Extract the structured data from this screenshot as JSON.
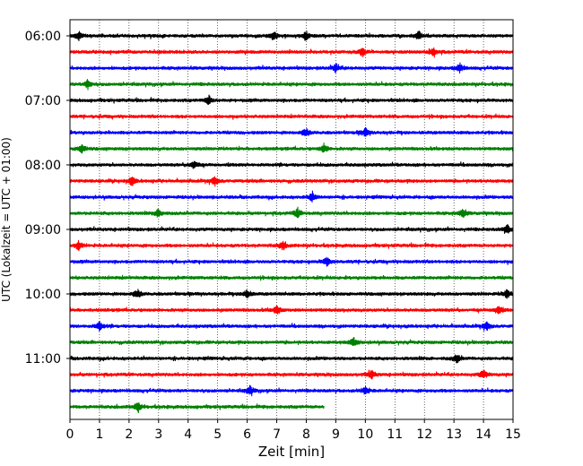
{
  "chart_data": {
    "type": "line",
    "title": "",
    "xlabel": "Zeit  [min]",
    "ylabel": "UTC (Lokalzeit = UTC + 01:00)",
    "xlim": [
      0,
      15
    ],
    "x_ticks": [
      0,
      1,
      2,
      3,
      4,
      5,
      6,
      7,
      8,
      9,
      10,
      11,
      12,
      13,
      14,
      15
    ],
    "x_tick_labels": [
      "0",
      "1",
      "2",
      "3",
      "4",
      "5",
      "6",
      "7",
      "8",
      "9",
      "10",
      "11",
      "12",
      "13",
      "14",
      "15"
    ],
    "y_tick_labels": [
      "06:00",
      "07:00",
      "08:00",
      "09:00",
      "10:00",
      "11:00"
    ],
    "grid": "vertical dotted lines at each minute",
    "color_cycle": [
      "#000000",
      "#ff0000",
      "#0000ff",
      "#008000"
    ],
    "series": [
      {
        "start": "06:00",
        "end_min": 15,
        "color": "#000000",
        "events_min": [
          0.3,
          6.9,
          8.0,
          11.8
        ]
      },
      {
        "start": "06:15",
        "end_min": 15,
        "color": "#ff0000",
        "events_min": [
          9.9,
          12.3
        ]
      },
      {
        "start": "06:30",
        "end_min": 15,
        "color": "#0000ff",
        "events_min": [
          9.0,
          13.2
        ]
      },
      {
        "start": "06:45",
        "end_min": 15,
        "color": "#008000",
        "events_min": [
          0.6
        ]
      },
      {
        "start": "07:00",
        "end_min": 15,
        "color": "#000000",
        "events_min": [
          4.7
        ]
      },
      {
        "start": "07:15",
        "end_min": 15,
        "color": "#ff0000",
        "events_min": []
      },
      {
        "start": "07:30",
        "end_min": 15,
        "color": "#0000ff",
        "events_min": [
          8.0,
          10.0
        ]
      },
      {
        "start": "07:45",
        "end_min": 15,
        "color": "#008000",
        "events_min": [
          0.4,
          8.6
        ]
      },
      {
        "start": "08:00",
        "end_min": 15,
        "color": "#000000",
        "events_min": [
          4.2
        ]
      },
      {
        "start": "08:15",
        "end_min": 15,
        "color": "#ff0000",
        "events_min": [
          2.1,
          4.9
        ]
      },
      {
        "start": "08:30",
        "end_min": 15,
        "color": "#0000ff",
        "events_min": [
          8.2
        ]
      },
      {
        "start": "08:45",
        "end_min": 15,
        "color": "#008000",
        "events_min": [
          3.0,
          7.7,
          13.3
        ]
      },
      {
        "start": "09:00",
        "end_min": 15,
        "color": "#000000",
        "events_min": [
          14.8
        ]
      },
      {
        "start": "09:15",
        "end_min": 15,
        "color": "#ff0000",
        "events_min": [
          0.3,
          7.2
        ]
      },
      {
        "start": "09:30",
        "end_min": 15,
        "color": "#0000ff",
        "events_min": [
          8.7
        ]
      },
      {
        "start": "09:45",
        "end_min": 15,
        "color": "#008000",
        "events_min": []
      },
      {
        "start": "10:00",
        "end_min": 15,
        "color": "#000000",
        "events_min": [
          2.3,
          6.0,
          14.8
        ]
      },
      {
        "start": "10:15",
        "end_min": 15,
        "color": "#ff0000",
        "events_min": [
          7.0,
          14.5
        ]
      },
      {
        "start": "10:30",
        "end_min": 15,
        "color": "#0000ff",
        "events_min": [
          1.0,
          14.1
        ]
      },
      {
        "start": "10:45",
        "end_min": 15,
        "color": "#008000",
        "events_min": [
          9.6
        ]
      },
      {
        "start": "11:00",
        "end_min": 15,
        "color": "#000000",
        "events_min": [
          13.1
        ]
      },
      {
        "start": "11:15",
        "end_min": 15,
        "color": "#ff0000",
        "events_min": [
          10.2,
          14.0
        ]
      },
      {
        "start": "11:30",
        "end_min": 15,
        "color": "#0000ff",
        "events_min": [
          6.1,
          10.0
        ]
      },
      {
        "start": "11:45",
        "end_min": 8.6,
        "color": "#008000",
        "events_min": [
          2.3
        ]
      }
    ]
  }
}
